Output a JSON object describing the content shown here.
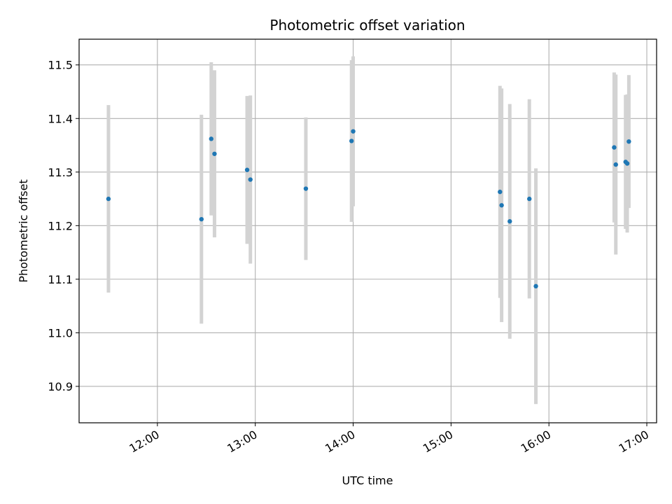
{
  "chart_data": {
    "type": "scatter",
    "title": "Photometric offset variation",
    "xlabel": "UTC time",
    "ylabel": "Photometric offset",
    "xlim": [
      "11:12",
      "17:06"
    ],
    "ylim": [
      10.832,
      11.548
    ],
    "x_ticks": [
      "12:00",
      "13:00",
      "14:00",
      "15:00",
      "16:00",
      "17:00"
    ],
    "y_ticks": [
      "10.9",
      "11.0",
      "11.1",
      "11.2",
      "11.3",
      "11.4",
      "11.5"
    ],
    "grid": true,
    "point_color": "#1f77b4",
    "errorbar_color": "#d3d3d3",
    "series": [
      {
        "points": [
          {
            "x": "11:30",
            "y": 11.25,
            "err": 0.175
          },
          {
            "x": "12:27",
            "y": 11.212,
            "err": 0.195
          },
          {
            "x": "12:33",
            "y": 11.362,
            "err": 0.143
          },
          {
            "x": "12:35",
            "y": 11.334,
            "err": 0.156
          },
          {
            "x": "12:55",
            "y": 11.304,
            "err": 0.138
          },
          {
            "x": "12:57",
            "y": 11.286,
            "err": 0.157
          },
          {
            "x": "13:31",
            "y": 11.269,
            "err": 0.133
          },
          {
            "x": "13:59",
            "y": 11.358,
            "err": 0.151
          },
          {
            "x": "14:00",
            "y": 11.376,
            "err": 0.14
          },
          {
            "x": "15:30",
            "y": 11.263,
            "err": 0.198
          },
          {
            "x": "15:31",
            "y": 11.238,
            "err": 0.218
          },
          {
            "x": "15:36",
            "y": 11.208,
            "err": 0.219
          },
          {
            "x": "15:48",
            "y": 11.25,
            "err": 0.186
          },
          {
            "x": "15:52",
            "y": 11.087,
            "err": 0.22
          },
          {
            "x": "16:40",
            "y": 11.346,
            "err": 0.14
          },
          {
            "x": "16:41",
            "y": 11.314,
            "err": 0.168
          },
          {
            "x": "16:47",
            "y": 11.319,
            "err": 0.125
          },
          {
            "x": "16:48",
            "y": 11.316,
            "err": 0.129
          },
          {
            "x": "16:49",
            "y": 11.357,
            "err": 0.124
          }
        ]
      }
    ]
  }
}
